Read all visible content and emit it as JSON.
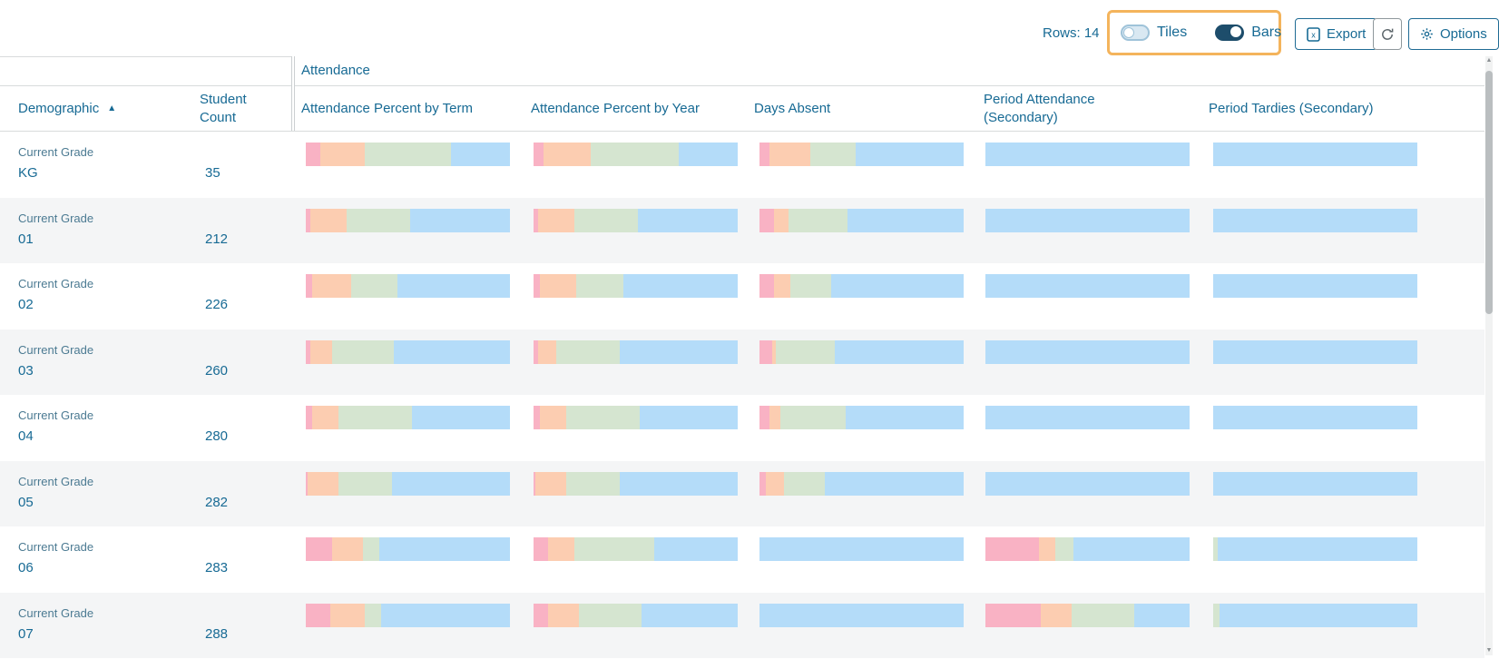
{
  "toolbar": {
    "rows_label": "Rows: 14",
    "tiles_label": "Tiles",
    "bars_label": "Bars",
    "toggles": [
      {
        "label": "Tiles",
        "state": "off"
      },
      {
        "label": "Bars",
        "state": "on"
      }
    ],
    "export_label": "Export",
    "options_label": "Options"
  },
  "table": {
    "group_header": "Attendance",
    "columns": [
      "Demographic",
      "Student Count",
      "Attendance Percent by Term",
      "Attendance Percent by Year",
      "Days Absent",
      "Period Attendance (Secondary)",
      "Period Tardies (Secondary)"
    ],
    "sort": {
      "column": "Demographic",
      "direction": "ascending",
      "icon": "▲"
    }
  },
  "colors": {
    "accent_text": "#176a94",
    "muted_label": "#4b7a92",
    "row_alt_bg": "#f4f5f6",
    "highlight_border": "#f4b45c",
    "toggle_on": "#1d4d6b",
    "bar_segment_names": [
      "pink",
      "salmon",
      "green",
      "blue"
    ],
    "bar_segments": [
      "#f9b2c4",
      "#fccdb1",
      "#d5e5d0",
      "#b4dcf9"
    ]
  },
  "chart_data": {
    "type": "bar",
    "note": "100% stacked horizontal bars per row; segment order pink, salmon, green, blue; values are percent of bar width",
    "bar_columns": [
      "term",
      "year",
      "days_absent",
      "period_attendance",
      "period_tardies"
    ]
  },
  "rows": [
    {
      "demographic_label": "Current Grade",
      "value": "KG",
      "student_count": "35",
      "bars": {
        "term": [
          7,
          22,
          42,
          29
        ],
        "year": [
          5,
          23,
          43,
          29
        ],
        "days_absent": [
          5,
          20,
          22,
          53
        ],
        "period_attendance": [
          0,
          0,
          0,
          100
        ],
        "period_tardies": [
          0,
          0,
          0,
          100
        ]
      }
    },
    {
      "demographic_label": "Current Grade",
      "value": "01",
      "student_count": "212",
      "bars": {
        "term": [
          2,
          18,
          31,
          49
        ],
        "year": [
          2,
          18,
          31,
          49
        ],
        "days_absent": [
          7,
          7,
          29,
          57
        ],
        "period_attendance": [
          0,
          0,
          0,
          100
        ],
        "period_tardies": [
          0,
          0,
          0,
          100
        ]
      }
    },
    {
      "demographic_label": "Current Grade",
      "value": "02",
      "student_count": "226",
      "bars": {
        "term": [
          3,
          19,
          23,
          55
        ],
        "year": [
          3,
          18,
          23,
          56
        ],
        "days_absent": [
          7,
          8,
          20,
          65
        ],
        "period_attendance": [
          0,
          0,
          0,
          100
        ],
        "period_tardies": [
          0,
          0,
          0,
          100
        ]
      }
    },
    {
      "demographic_label": "Current Grade",
      "value": "03",
      "student_count": "260",
      "bars": {
        "term": [
          2,
          11,
          30,
          57
        ],
        "year": [
          2,
          9,
          31,
          58
        ],
        "days_absent": [
          6,
          2,
          29,
          63
        ],
        "period_attendance": [
          0,
          0,
          0,
          100
        ],
        "period_tardies": [
          0,
          0,
          0,
          100
        ]
      }
    },
    {
      "demographic_label": "Current Grade",
      "value": "04",
      "student_count": "280",
      "bars": {
        "term": [
          3,
          13,
          36,
          48
        ],
        "year": [
          3,
          13,
          36,
          48
        ],
        "days_absent": [
          5,
          5,
          32,
          58
        ],
        "period_attendance": [
          0,
          0,
          0,
          100
        ],
        "period_tardies": [
          0,
          0,
          0,
          100
        ]
      }
    },
    {
      "demographic_label": "Current Grade",
      "value": "05",
      "student_count": "282",
      "bars": {
        "term": [
          1,
          15,
          26,
          58
        ],
        "year": [
          1,
          15,
          26,
          58
        ],
        "days_absent": [
          3,
          9,
          20,
          68
        ],
        "period_attendance": [
          0,
          0,
          0,
          100
        ],
        "period_tardies": [
          0,
          0,
          0,
          100
        ]
      }
    },
    {
      "demographic_label": "Current Grade",
      "value": "06",
      "student_count": "283",
      "bars": {
        "term": [
          13,
          15,
          8,
          64
        ],
        "year": [
          7,
          13,
          39,
          41
        ],
        "days_absent": [
          0,
          0,
          0,
          100
        ],
        "period_attendance": [
          26,
          8,
          9,
          57
        ],
        "period_tardies": [
          0,
          0,
          2,
          98
        ]
      }
    },
    {
      "demographic_label": "Current Grade",
      "value": "07",
      "student_count": "288",
      "bars": {
        "term": [
          12,
          17,
          8,
          63
        ],
        "year": [
          7,
          15,
          31,
          47
        ],
        "days_absent": [
          0,
          0,
          0,
          100
        ],
        "period_attendance": [
          27,
          15,
          31,
          27
        ],
        "period_tardies": [
          0,
          0,
          3,
          97
        ]
      }
    }
  ]
}
